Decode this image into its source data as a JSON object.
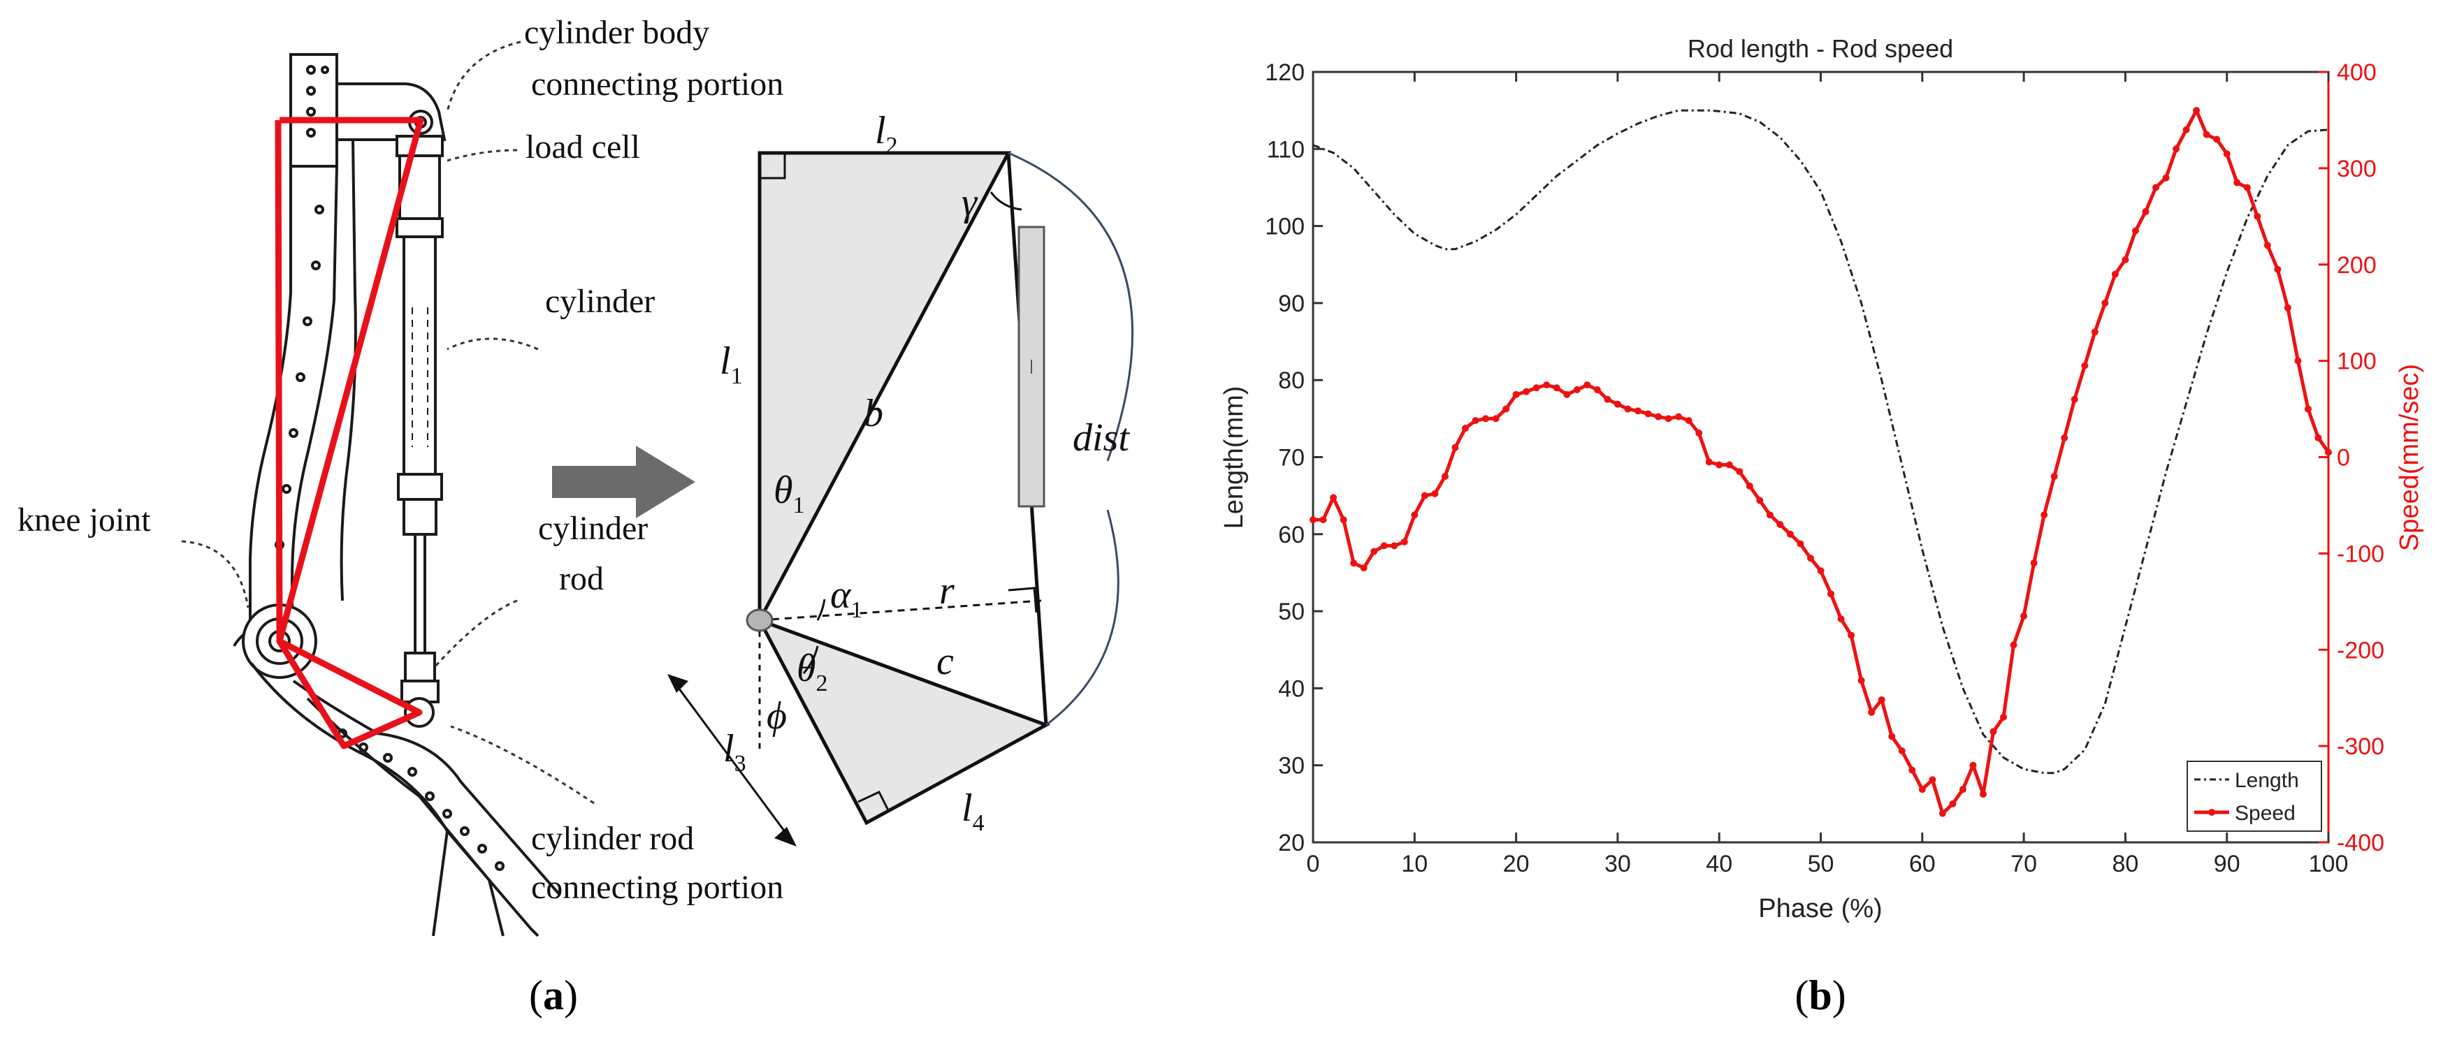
{
  "panel_a": {
    "caption_label": "a",
    "callouts": {
      "body_connect_1": "cylinder body",
      "body_connect_2": "connecting portion",
      "load_cell": "load cell",
      "cylinder": "cylinder",
      "knee_joint": "knee joint",
      "rod_1": "cylinder",
      "rod_2": "rod",
      "rod_connect_1": "cylinder rod",
      "rod_connect_2": "connecting portion"
    },
    "symbols": {
      "l": "l",
      "sub1": "1",
      "sub2": "2",
      "sub3": "3",
      "sub4": "4",
      "theta": "θ",
      "alpha": "α",
      "phi": "ϕ",
      "gamma": "γ",
      "b": "b",
      "c": "c",
      "r": "r",
      "dist": "dist"
    },
    "colors": {
      "linkage": "#e8111a",
      "shade": "#e6e6e6",
      "arrow": "#6b6b6b"
    }
  },
  "panel_b": {
    "caption_label": "b",
    "chart_data": {
      "type": "line",
      "title": "Rod length - Rod speed",
      "xlabel": "Phase (%)",
      "ylabel_left": "Length(mm)",
      "ylabel_right": "Speed(mm/sec)",
      "xlim": [
        0,
        100
      ],
      "ylim_left": [
        20,
        120
      ],
      "ylim_right": [
        -400,
        400
      ],
      "xticks": [
        0,
        10,
        20,
        30,
        40,
        50,
        60,
        70,
        80,
        90,
        100
      ],
      "yticks_left": [
        20,
        30,
        40,
        50,
        60,
        70,
        80,
        90,
        100,
        110,
        120
      ],
      "yticks_right": [
        -400,
        -300,
        -200,
        -100,
        0,
        100,
        200,
        300,
        400
      ],
      "legend": {
        "placement": "bottom-right",
        "entries": [
          "Length",
          "Speed"
        ]
      },
      "series": [
        {
          "name": "Length",
          "axis": "left",
          "color": "#222222",
          "style": "dash-dot",
          "x": [
            0,
            2,
            4,
            6,
            8,
            10,
            12,
            13,
            14,
            16,
            18,
            20,
            22,
            24,
            26,
            28,
            30,
            32,
            34,
            36,
            38,
            39,
            40,
            42,
            44,
            46,
            48,
            50,
            52,
            54,
            56,
            58,
            60,
            62,
            64,
            66,
            68,
            70,
            72,
            73,
            74,
            76,
            78,
            80,
            82,
            84,
            86,
            88,
            90,
            92,
            94,
            96,
            98,
            100
          ],
          "values": [
            110.5,
            109.5,
            107.5,
            104.5,
            101.5,
            99,
            97.5,
            97,
            97,
            98,
            99.5,
            101.5,
            104,
            106.5,
            108.5,
            110.5,
            112,
            113.3,
            114.3,
            115,
            115,
            115,
            114.9,
            114.6,
            113.5,
            111.5,
            108.5,
            104.5,
            98,
            90,
            80,
            69,
            58,
            48,
            40,
            34,
            31,
            29.5,
            29,
            29,
            29.5,
            32,
            38,
            48,
            58,
            68,
            77,
            86,
            94,
            101,
            106.5,
            110.5,
            112.3,
            112.5
          ]
        },
        {
          "name": "Speed",
          "axis": "right",
          "color": "#ee1111",
          "style": "solid-markers",
          "x": [
            0,
            1,
            2,
            3,
            4,
            5,
            6,
            7,
            8,
            9,
            10,
            11,
            12,
            13,
            14,
            15,
            16,
            17,
            18,
            19,
            20,
            21,
            22,
            23,
            24,
            25,
            26,
            27,
            28,
            29,
            30,
            31,
            32,
            33,
            34,
            35,
            36,
            37,
            38,
            39,
            40,
            41,
            42,
            43,
            44,
            45,
            46,
            47,
            48,
            49,
            50,
            51,
            52,
            53,
            54,
            55,
            56,
            57,
            58,
            59,
            60,
            61,
            62,
            63,
            64,
            65,
            66,
            67,
            68,
            69,
            70,
            71,
            72,
            73,
            74,
            75,
            76,
            77,
            78,
            79,
            80,
            81,
            82,
            83,
            84,
            85,
            86,
            87,
            88,
            89,
            90,
            91,
            92,
            93,
            94,
            95,
            96,
            97,
            98,
            99,
            100
          ],
          "values": [
            -65,
            -65,
            -42,
            -65,
            -110,
            -115,
            -98,
            -92,
            -92,
            -88,
            -60,
            -40,
            -38,
            -20,
            10,
            30,
            38,
            40,
            40,
            50,
            65,
            68,
            72,
            75,
            72,
            65,
            70,
            75,
            70,
            60,
            55,
            50,
            48,
            45,
            42,
            40,
            42,
            38,
            25,
            -5,
            -8,
            -8,
            -15,
            -30,
            -45,
            -60,
            -70,
            -80,
            -90,
            -105,
            -118,
            -142,
            -168,
            -185,
            -232,
            -265,
            -252,
            -290,
            -305,
            -325,
            -345,
            -335,
            -370,
            -360,
            -345,
            -320,
            -350,
            -285,
            -270,
            -195,
            -165,
            -110,
            -60,
            -20,
            20,
            60,
            95,
            130,
            160,
            190,
            205,
            235,
            255,
            280,
            290,
            320,
            340,
            360,
            335,
            330,
            315,
            285,
            280,
            250,
            220,
            195,
            155,
            100,
            50,
            20,
            5
          ]
        }
      ]
    }
  }
}
